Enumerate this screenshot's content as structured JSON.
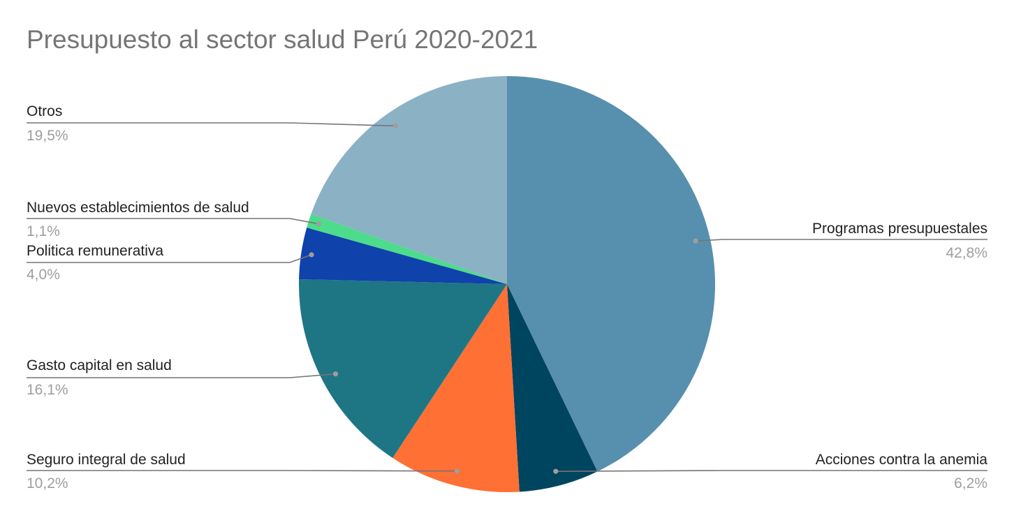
{
  "chart_data": {
    "type": "pie",
    "title": "Presupuesto al sector salud Perú 2020-2021",
    "start_angle_deg": 0,
    "direction": "clockwise",
    "legend": "labels beside slices with leader lines",
    "slices": [
      {
        "label": "Programas presupuestales",
        "value": 42.8,
        "display": "42,8%",
        "color": "#5790ae",
        "side": "right"
      },
      {
        "label": "Acciones contra la anemia",
        "value": 6.2,
        "display": "6,2%",
        "color": "#00455f",
        "side": "right"
      },
      {
        "label": "Seguro integral de salud",
        "value": 10.2,
        "display": "10,2%",
        "color": "#ff7035",
        "side": "left"
      },
      {
        "label": "Gasto capital en salud",
        "value": 16.1,
        "display": "16,1%",
        "color": "#1e7685",
        "side": "left"
      },
      {
        "label": "Politica remunerativa",
        "value": 4.0,
        "display": "4,0%",
        "color": "#0f42aa",
        "side": "left"
      },
      {
        "label": "Nuevos establecimientos de salud",
        "value": 1.1,
        "display": "1,1%",
        "color": "#4cdc8b",
        "side": "left"
      },
      {
        "label": "Otros",
        "value": 19.5,
        "display": "19,5%",
        "color": "#8bb1c5",
        "side": "left"
      }
    ]
  }
}
